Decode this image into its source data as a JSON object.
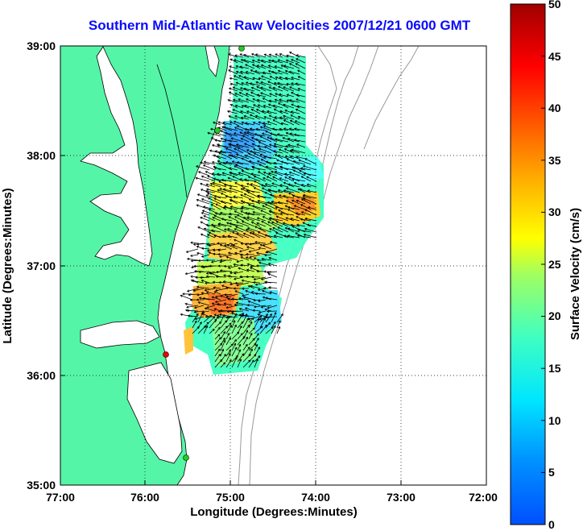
{
  "title": "Southern Mid-Atlantic Raw Velocities 2007/12/21 0600 GMT",
  "xaxis": {
    "label": "Longitude (Degrees:Minutes)",
    "ticks": [
      "77:00",
      "76:00",
      "75:00",
      "74:00",
      "73:00",
      "72:00"
    ]
  },
  "yaxis": {
    "label": "Latitude (Degrees:Minutes)",
    "ticks": [
      "39:00",
      "38:00",
      "37:00",
      "36:00",
      "35:00"
    ]
  },
  "colorbar": {
    "label": "Surface Velocity (cm/s)",
    "min": 0,
    "max": 50,
    "ticks": [
      "50",
      "45",
      "40",
      "35",
      "30",
      "25",
      "20",
      "15",
      "10",
      "5",
      "0"
    ]
  },
  "colors": {
    "land": "#55f5a8",
    "ocean": "#ffffff",
    "title": "#0a0aff",
    "station_green": "#22cc22",
    "station_red": "#ee0000"
  }
}
